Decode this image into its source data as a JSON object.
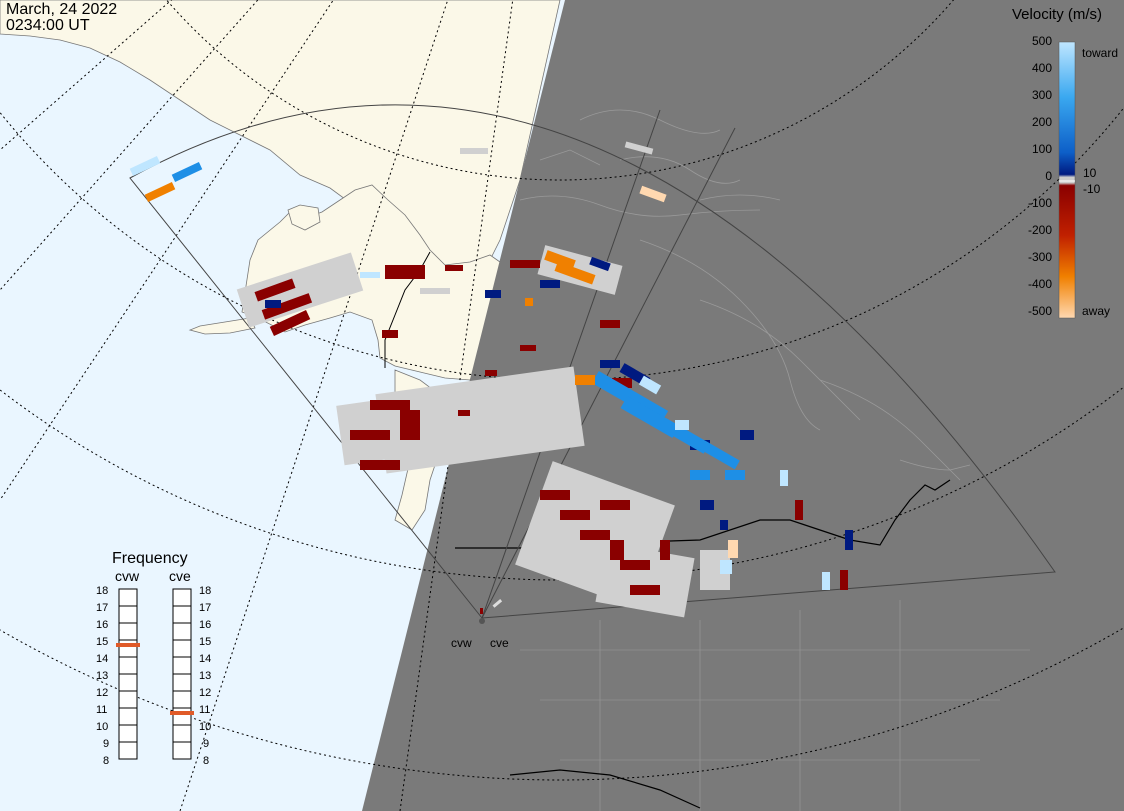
{
  "header": {
    "date": "March, 24 2022",
    "time": "0234:00 UT"
  },
  "velocity_scale": {
    "title": "Velocity (m/s)",
    "ticks": [
      "500",
      "400",
      "300",
      "200",
      "100",
      "10",
      "0",
      "-10",
      "-100",
      "-200",
      "-300",
      "-400",
      "-500"
    ],
    "toward_label": "toward",
    "away_label": "away",
    "colors": {
      "toward_light": "#bfe6ff",
      "toward_mid": "#1e8fe6",
      "toward_dark": "#001a80",
      "ground_scatter": "#d0d0d0",
      "away_dark": "#8a0000",
      "away_mid": "#e25000",
      "away_light": "#ffd8b0"
    }
  },
  "frequency_panel": {
    "title": "Frequency",
    "radars": [
      {
        "name": "cvw",
        "value_mhz": 15
      },
      {
        "name": "cve",
        "value_mhz": 11
      }
    ],
    "scale": [
      "18",
      "17",
      "16",
      "15",
      "14",
      "13",
      "12",
      "11",
      "10",
      "9",
      "8"
    ],
    "marker_color": "#e05a28"
  },
  "sites": [
    {
      "label": "cvw"
    },
    {
      "label": "cve"
    }
  ],
  "map": {
    "ocean_color": "#eaf6ff",
    "land_color": "#fbf8e8",
    "night_color": "#7a7a7a"
  }
}
